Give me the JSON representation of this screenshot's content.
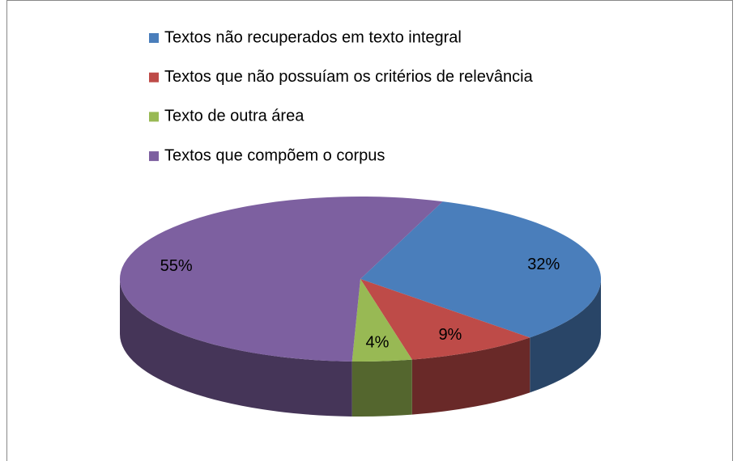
{
  "chart_data": {
    "type": "pie3d",
    "categories": [
      "Textos não recuperados em texto integral",
      "Textos que não possuíam os critérios de relevância",
      "Texto de outra área",
      "Textos que compõem o corpus"
    ],
    "values": [
      32,
      9,
      4,
      55
    ],
    "value_labels": [
      "32%",
      "9%",
      "4%",
      "55%"
    ],
    "colors": [
      "#4a7ebb",
      "#be4b48",
      "#98b954",
      "#7d60a0"
    ],
    "legend": "top"
  }
}
